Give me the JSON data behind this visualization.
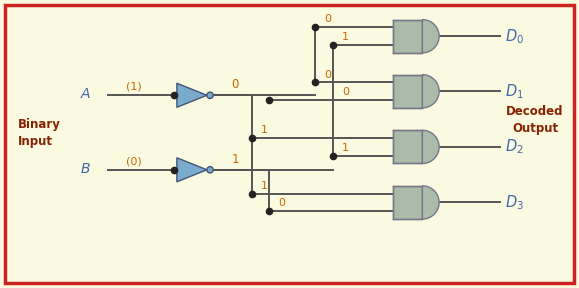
{
  "bg_color": "#FAFAE0",
  "border_color": "#CC2222",
  "line_color": "#555555",
  "blue_color": "#4466AA",
  "maroon_color": "#882200",
  "orange_color": "#CC6600",
  "gate_fill": "#AABBAA",
  "gate_edge": "#777788",
  "inv_fill": "#7AAACC",
  "inv_edge": "#445577",
  "binary_input_label": "Binary\nInput",
  "decoded_output_label": "Decoded\nOutput",
  "input_A_label": "A",
  "input_B_label": "B",
  "input_A_val": "(1)",
  "input_B_val": "(0)",
  "inv_A_out": "0",
  "inv_B_out": "1",
  "fig_width": 5.79,
  "fig_height": 2.88,
  "dpi": 100
}
